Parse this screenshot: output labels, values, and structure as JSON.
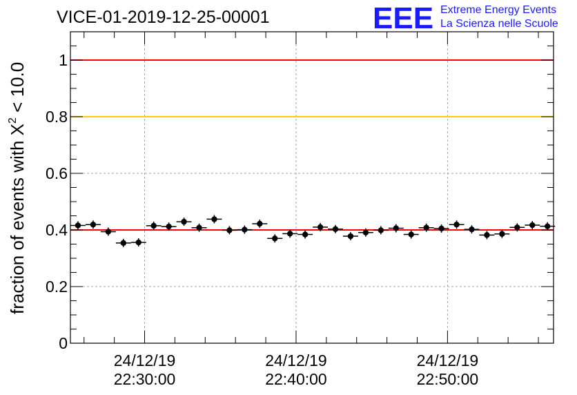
{
  "chart_data": {
    "type": "scatter",
    "title": "VICE-01-2019-12-25-00001",
    "ylabel": "fraction of events with X² < 10.0",
    "ylabel_main": "fraction of events with X",
    "ylabel_sup": "2",
    "ylabel_tail": " < 10.0",
    "xlabel": "",
    "ylim": [
      0,
      1.1
    ],
    "xlim_minutes": [
      -4.9,
      27.0
    ],
    "y_ticks": [
      "0",
      "0.2",
      "0.4",
      "0.6",
      "0.8",
      "1"
    ],
    "y_tick_values": [
      0,
      0.2,
      0.4,
      0.6,
      0.8,
      1.0
    ],
    "x_ticks": [
      {
        "minutes": 0,
        "date": "24/12/19",
        "time": "22:30:00"
      },
      {
        "minutes": 10,
        "date": "24/12/19",
        "time": "22:40:00"
      },
      {
        "minutes": 20,
        "date": "24/12/19",
        "time": "22:50:00"
      }
    ],
    "grid": true,
    "reference_lines": [
      {
        "name": "upper-limit",
        "y": 1.0,
        "color": "#ff0000"
      },
      {
        "name": "warning-level",
        "y": 0.8,
        "color": "#ffcc00"
      },
      {
        "name": "mean-level",
        "y": 0.4,
        "color": "#ff0000"
      }
    ],
    "series": [
      {
        "name": "fraction",
        "x_minutes": [
          -4.4,
          -3.4,
          -2.4,
          -1.4,
          -0.4,
          0.6,
          1.6,
          2.6,
          3.6,
          4.6,
          5.6,
          6.6,
          7.6,
          8.6,
          9.6,
          10.6,
          11.6,
          12.6,
          13.6,
          14.6,
          15.6,
          16.6,
          17.6,
          18.6,
          19.6,
          20.6,
          21.6,
          22.6,
          23.6,
          24.6,
          25.6,
          26.6
        ],
        "x_halfwidth_minutes": 0.5,
        "y": [
          0.416,
          0.419,
          0.394,
          0.354,
          0.356,
          0.415,
          0.412,
          0.429,
          0.408,
          0.438,
          0.399,
          0.401,
          0.422,
          0.37,
          0.387,
          0.384,
          0.41,
          0.403,
          0.378,
          0.391,
          0.399,
          0.406,
          0.384,
          0.408,
          0.405,
          0.419,
          0.402,
          0.382,
          0.386,
          0.409,
          0.417,
          0.413
        ],
        "color": "#000000"
      }
    ]
  },
  "logo": {
    "mark": "EEE",
    "line1": "Extreme Energy Events",
    "line2": "La Scienza nelle Scuole",
    "color": "#1a1aff"
  }
}
